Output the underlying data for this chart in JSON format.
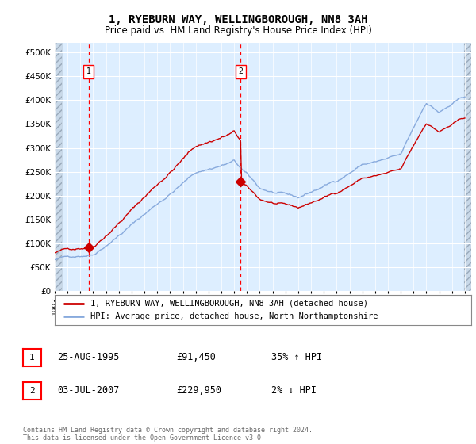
{
  "title": "1, RYEBURN WAY, WELLINGBOROUGH, NN8 3AH",
  "subtitle": "Price paid vs. HM Land Registry's House Price Index (HPI)",
  "legend_line1": "1, RYEBURN WAY, WELLINGBOROUGH, NN8 3AH (detached house)",
  "legend_line2": "HPI: Average price, detached house, North Northamptonshire",
  "sale1_date": "25-AUG-1995",
  "sale1_price": 91450,
  "sale1_label": "1",
  "sale1_hpi": "35% ↑ HPI",
  "sale2_date": "03-JUL-2007",
  "sale2_price": 229950,
  "sale2_label": "2",
  "sale2_hpi": "2% ↓ HPI",
  "footer": "Contains HM Land Registry data © Crown copyright and database right 2024.\nThis data is licensed under the Open Government Licence v3.0.",
  "ylim": [
    0,
    520000
  ],
  "yticks": [
    0,
    50000,
    100000,
    150000,
    200000,
    250000,
    300000,
    350000,
    400000,
    450000,
    500000
  ],
  "hpi_line_color": "#88aadd",
  "price_line_color": "#cc0000",
  "bg_color": "#ddeeff",
  "hatch_color": "#c8d8e8",
  "grid_color": "#ffffff",
  "sale_marker_color": "#cc0000",
  "sale1_year": 1995.65,
  "sale2_year": 2007.5,
  "xlim_left": 1993.0,
  "xlim_right": 2025.5
}
